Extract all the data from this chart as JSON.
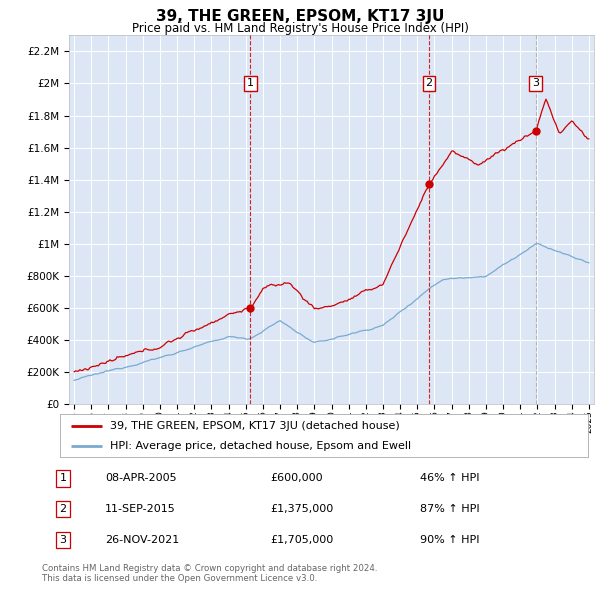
{
  "title": "39, THE GREEN, EPSOM, KT17 3JU",
  "subtitle": "Price paid vs. HM Land Registry's House Price Index (HPI)",
  "plot_bg_color": "#dce6f5",
  "legend_label_red": "39, THE GREEN, EPSOM, KT17 3JU (detached house)",
  "legend_label_blue": "HPI: Average price, detached house, Epsom and Ewell",
  "transaction_years": [
    2005.27,
    2015.69,
    2021.9
  ],
  "transaction_values": [
    600000,
    1375000,
    1705000
  ],
  "transaction_labels": [
    "1",
    "2",
    "3"
  ],
  "transaction_dates": [
    "08-APR-2005",
    "11-SEP-2015",
    "26-NOV-2021"
  ],
  "transaction_prices": [
    "£600,000",
    "£1,375,000",
    "£1,705,000"
  ],
  "transaction_hpi": [
    "46% ↑ HPI",
    "87% ↑ HPI",
    "90% ↑ HPI"
  ],
  "footer": "Contains HM Land Registry data © Crown copyright and database right 2024.\nThis data is licensed under the Open Government Licence v3.0.",
  "ylim": [
    0,
    2300000
  ],
  "yticks": [
    0,
    200000,
    400000,
    600000,
    800000,
    1000000,
    1200000,
    1400000,
    1600000,
    1800000,
    2000000,
    2200000
  ],
  "ytick_labels": [
    "£0",
    "£200K",
    "£400K",
    "£600K",
    "£800K",
    "£1M",
    "£1.2M",
    "£1.4M",
    "£1.6M",
    "£1.8M",
    "£2M",
    "£2.2M"
  ],
  "red_color": "#cc0000",
  "blue_color": "#7aaad0",
  "vline_colors": [
    "#cc0000",
    "#cc0000",
    "#aaaaaa"
  ]
}
